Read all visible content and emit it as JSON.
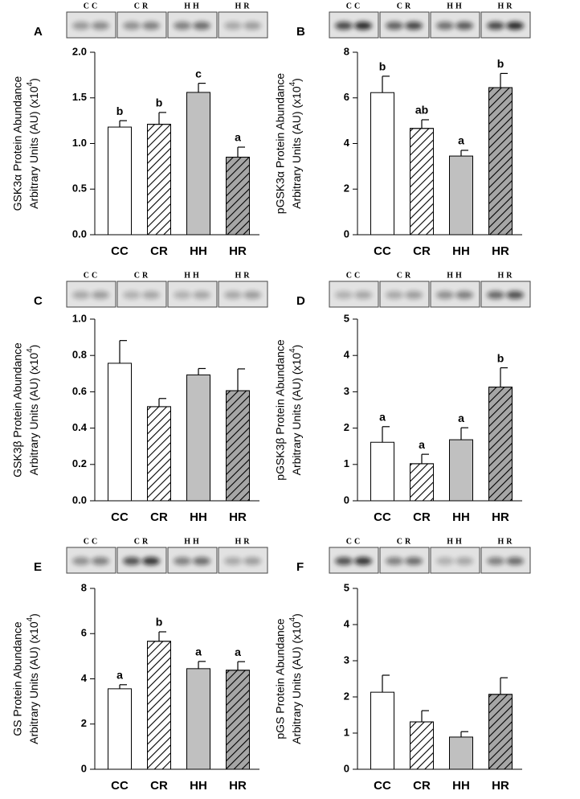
{
  "chart_data": [
    {
      "type": "bar",
      "panel": "A",
      "blot_labels": [
        "CC",
        "CR",
        "HH",
        "HR"
      ],
      "ylabel": [
        "GSK3α Protein Abundance",
        "Arbitrary Units (AU) (x10"
      ],
      "ylabel_exponent": "4",
      "ylabel_suffix": ")",
      "categories": [
        "CC",
        "CR",
        "HH",
        "HR"
      ],
      "values": [
        1.18,
        1.21,
        1.56,
        0.85
      ],
      "errors": [
        0.07,
        0.13,
        0.1,
        0.11
      ],
      "annotations": [
        "b",
        "b",
        "c",
        "a"
      ],
      "fills": [
        "#ffffff",
        "#ffffff",
        "#c0c0c0",
        "#a6a6a6"
      ],
      "hatch": [
        false,
        true,
        false,
        true
      ],
      "ylim": [
        0,
        2
      ],
      "yticks": [
        {
          "value": 0,
          "label": "0.0"
        },
        {
          "value": 0.5,
          "label": "0.5"
        },
        {
          "value": 1,
          "label": "1.0"
        },
        {
          "value": 1.5,
          "label": "1.5"
        },
        {
          "value": 2,
          "label": "2.0"
        }
      ]
    },
    {
      "type": "bar",
      "panel": "B",
      "blot_labels": [
        "CC",
        "CR",
        "HH",
        "HR"
      ],
      "ylabel": [
        "pGSK3α Protein Abundance",
        "Arbitrary Units (AU) (x10"
      ],
      "ylabel_exponent": "4",
      "ylabel_suffix": ")",
      "categories": [
        "CC",
        "CR",
        "HH",
        "HR"
      ],
      "values": [
        6.23,
        4.66,
        3.45,
        6.45
      ],
      "errors": [
        0.72,
        0.38,
        0.25,
        0.62
      ],
      "annotations": [
        "b",
        "ab",
        "a",
        "b"
      ],
      "fills": [
        "#ffffff",
        "#ffffff",
        "#c0c0c0",
        "#a6a6a6"
      ],
      "hatch": [
        false,
        true,
        false,
        true
      ],
      "ylim": [
        0,
        8
      ],
      "yticks": [
        0,
        2,
        4,
        6,
        8
      ]
    },
    {
      "type": "bar",
      "panel": "C",
      "blot_labels": [
        "CC",
        "CR",
        "HH",
        "HR"
      ],
      "ylabel": [
        "GSK3β Protein Abundance",
        "Arbitrary Units (AU) (x10"
      ],
      "ylabel_exponent": "4",
      "ylabel_suffix": ")",
      "categories": [
        "CC",
        "CR",
        "HH",
        "HR"
      ],
      "values": [
        0.757,
        0.518,
        0.693,
        0.606
      ],
      "errors": [
        0.125,
        0.045,
        0.035,
        0.12
      ],
      "fills": [
        "#ffffff",
        "#ffffff",
        "#c0c0c0",
        "#a6a6a6"
      ],
      "hatch": [
        false,
        true,
        false,
        true
      ],
      "ylim": [
        0,
        1
      ],
      "yticks": [
        {
          "value": 0,
          "label": "0.0"
        },
        {
          "value": 0.2,
          "label": "0.2"
        },
        {
          "value": 0.4,
          "label": "0.4"
        },
        {
          "value": 0.6,
          "label": "0.6"
        },
        {
          "value": 0.8,
          "label": "0.8"
        },
        {
          "value": 1,
          "label": "1.0"
        }
      ]
    },
    {
      "type": "bar",
      "panel": "D",
      "blot_labels": [
        "CC",
        "CR",
        "HH",
        "HR"
      ],
      "ylabel": [
        "pGSK3β Protein Abundance",
        "Arbitrary Units (AU) (x10"
      ],
      "ylabel_exponent": "4",
      "ylabel_suffix": ")",
      "categories": [
        "CC",
        "CR",
        "HH",
        "HR"
      ],
      "values": [
        1.61,
        1.02,
        1.68,
        3.13
      ],
      "errors": [
        0.43,
        0.26,
        0.33,
        0.53
      ],
      "annotations": [
        "a",
        "a",
        "a",
        "b"
      ],
      "fills": [
        "#ffffff",
        "#ffffff",
        "#c0c0c0",
        "#a6a6a6"
      ],
      "hatch": [
        false,
        true,
        false,
        true
      ],
      "ylim": [
        0,
        5
      ],
      "yticks": [
        0,
        1,
        2,
        3,
        4,
        5
      ]
    },
    {
      "type": "bar",
      "panel": "E",
      "blot_labels": [
        "CC",
        "CR",
        "HH",
        "HR"
      ],
      "ylabel": [
        "GS Protein Abundance",
        "Arbitrary Units (AU) (x10"
      ],
      "ylabel_exponent": "4",
      "ylabel_suffix": ")",
      "categories": [
        "CC",
        "CR",
        "HH",
        "HR"
      ],
      "values": [
        3.56,
        5.66,
        4.45,
        4.38
      ],
      "errors": [
        0.18,
        0.42,
        0.32,
        0.38
      ],
      "annotations": [
        "a",
        "b",
        "a",
        "a"
      ],
      "fills": [
        "#ffffff",
        "#ffffff",
        "#c0c0c0",
        "#a6a6a6"
      ],
      "hatch": [
        false,
        true,
        false,
        true
      ],
      "ylim": [
        0,
        8
      ],
      "yticks": [
        0,
        2,
        4,
        6,
        8
      ]
    },
    {
      "type": "bar",
      "panel": "F",
      "blot_labels": [
        "CC",
        "CR",
        "HH",
        "HR"
      ],
      "ylabel": [
        "pGS Protein Abundance",
        "Arbitrary Units (AU) (x10"
      ],
      "ylabel_exponent": "4",
      "ylabel_suffix": ")",
      "categories": [
        "CC",
        "CR",
        "HH",
        "HR"
      ],
      "values": [
        2.13,
        1.31,
        0.89,
        2.07
      ],
      "errors": [
        0.47,
        0.31,
        0.15,
        0.46
      ],
      "fills": [
        "#ffffff",
        "#ffffff",
        "#c0c0c0",
        "#a6a6a6"
      ],
      "hatch": [
        false,
        true,
        false,
        true
      ],
      "ylim": [
        0,
        5
      ],
      "yticks": [
        0,
        1,
        2,
        3,
        4,
        5
      ]
    }
  ]
}
